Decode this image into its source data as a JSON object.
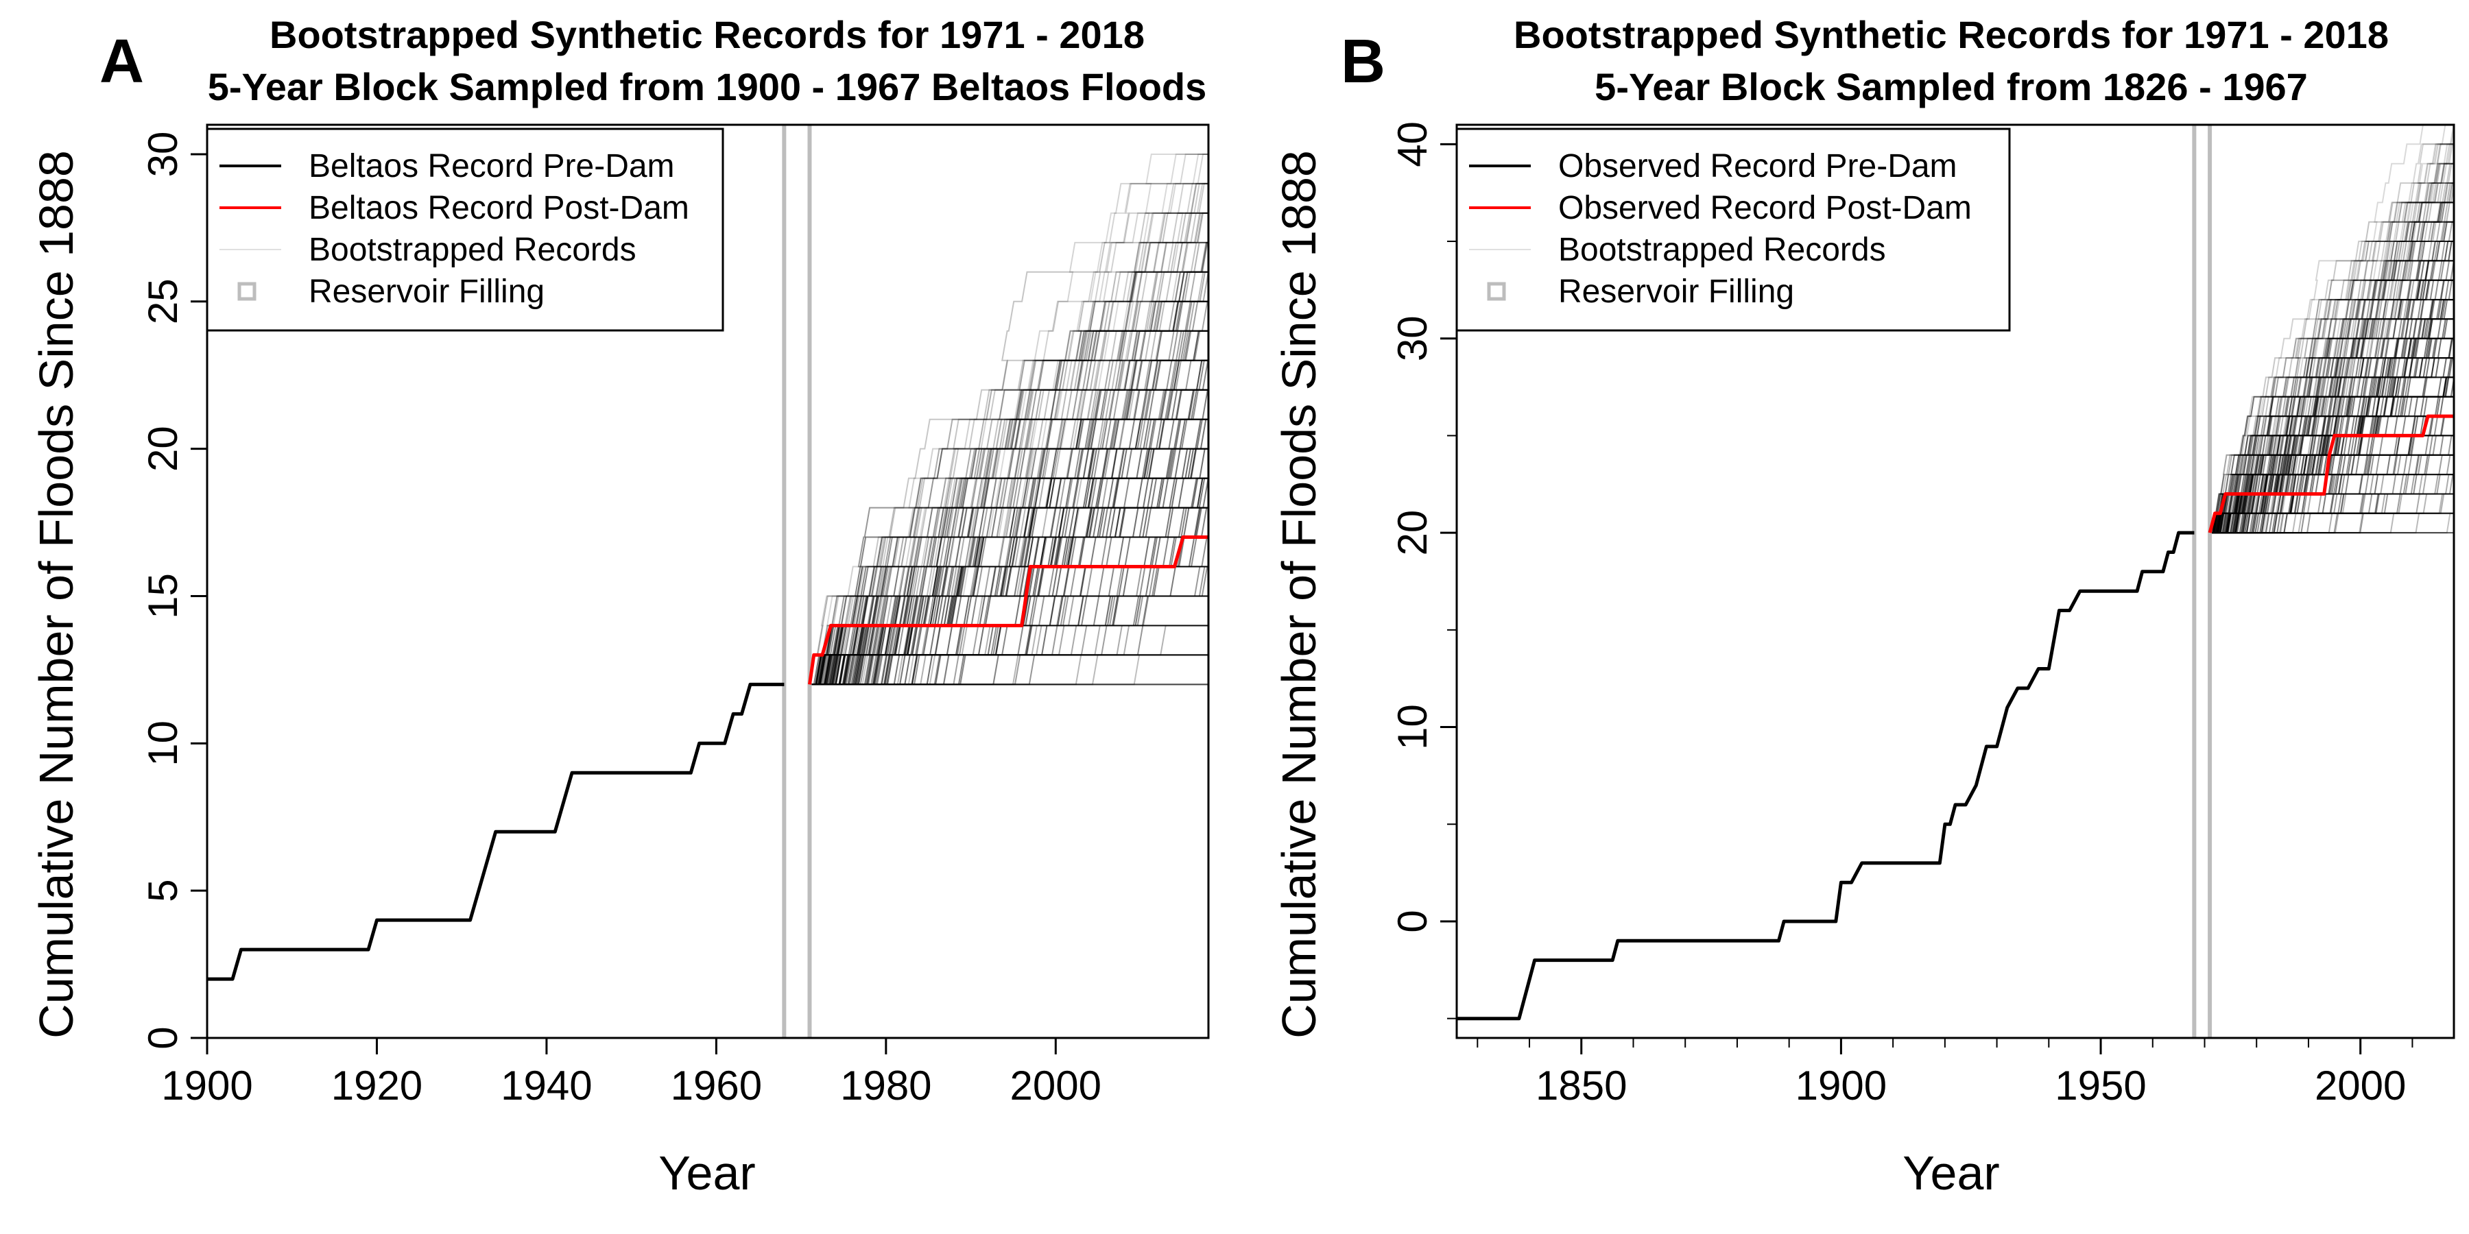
{
  "chart_data": [
    {
      "type": "line",
      "panel_letter": "A",
      "title_line1": "Bootstrapped Synthetic Records for 1971 - 2018",
      "title_line2": "5-Year Block Sampled from 1900 - 1967 Beltaos Floods",
      "xlabel": "Year",
      "ylabel": "Cumulative Number of Floods Since 1888",
      "xlim": [
        1900,
        2018
      ],
      "ylim": [
        0,
        31
      ],
      "xticks": [
        1900,
        1920,
        1940,
        1960,
        1980,
        2000
      ],
      "xtick_labels": [
        "1900",
        "1920",
        "1940",
        "1960",
        "1980",
        "2000"
      ],
      "yticks": [
        0,
        5,
        10,
        15,
        20,
        25,
        30
      ],
      "ytick_labels": [
        "0",
        "5",
        "10",
        "15",
        "20",
        "25",
        "30"
      ],
      "vlines": [
        1968,
        1971
      ],
      "legend_position": "top-left",
      "legend": [
        {
          "label": "Beltaos Record Pre-Dam",
          "style": "black-line"
        },
        {
          "label": "Beltaos Record Post-Dam",
          "style": "red-line"
        },
        {
          "label": "Bootstrapped Records",
          "style": "faint-line"
        },
        {
          "label": "Reservoir Filling",
          "style": "gray-square"
        }
      ],
      "series": [
        {
          "name": "Beltaos Record Pre-Dam",
          "color": "#000000",
          "x": [
            1900,
            1903,
            1904,
            1919,
            1920,
            1931,
            1934,
            1941,
            1943,
            1957,
            1958,
            1961,
            1962,
            1963,
            1964,
            1968
          ],
          "y": [
            2,
            2,
            3,
            3,
            4,
            4,
            7,
            7,
            9,
            9,
            10,
            10,
            11,
            11,
            12,
            12
          ]
        },
        {
          "name": "Beltaos Record Post-Dam",
          "color": "#ff0000",
          "x": [
            1971,
            1971.5,
            1972.5,
            1973.5,
            1974,
            1996,
            1997,
            2014,
            2015,
            2018
          ],
          "y": [
            12,
            13,
            13,
            14,
            14,
            14,
            16,
            16,
            17,
            17
          ]
        }
      ],
      "bootstrap": {
        "start_x": 1971,
        "end_x": 2018,
        "start_y": 12,
        "max_final": 30,
        "min_final": 12
      }
    },
    {
      "type": "line",
      "panel_letter": "B",
      "title_line1": "Bootstrapped Synthetic Records for 1971 - 2018",
      "title_line2": "5-Year Block Sampled from 1826 - 1967",
      "xlabel": "Year",
      "ylabel": "Cumulative Number of Floods Since 1888",
      "xlim": [
        1826,
        2018
      ],
      "ylim": [
        -6,
        41
      ],
      "xticks": [
        1850,
        1900,
        1950,
        2000
      ],
      "xtick_labels": [
        "1850",
        "1900",
        "1950",
        "2000"
      ],
      "xminor_step": 10,
      "yticks": [
        0,
        10,
        20,
        30,
        40
      ],
      "ytick_labels": [
        "0",
        "10",
        "20",
        "30",
        "40"
      ],
      "yminor_step": 5,
      "vlines": [
        1968,
        1971
      ],
      "legend_position": "top-left",
      "legend": [
        {
          "label": "Observed Record Pre-Dam",
          "style": "black-line"
        },
        {
          "label": "Observed Record Post-Dam",
          "style": "red-line"
        },
        {
          "label": "Bootstrapped Records",
          "style": "faint-line"
        },
        {
          "label": "Reservoir Filling",
          "style": "gray-square"
        }
      ],
      "series": [
        {
          "name": "Observed Record Pre-Dam",
          "color": "#000000",
          "x": [
            1826,
            1838,
            1841,
            1856,
            1857,
            1888,
            1889,
            1899,
            1900,
            1902,
            1904,
            1919,
            1920,
            1921,
            1922,
            1924,
            1926,
            1928,
            1930,
            1932,
            1934,
            1936,
            1938,
            1940,
            1942,
            1944,
            1946,
            1955,
            1956,
            1957,
            1958,
            1962,
            1963,
            1964,
            1965,
            1968
          ],
          "y": [
            -5,
            -5,
            -2,
            -2,
            -1,
            -1,
            0,
            0,
            2,
            2,
            3,
            3,
            5,
            5,
            6,
            6,
            7,
            9,
            9,
            11,
            12,
            12,
            13,
            13,
            16,
            16,
            17,
            17,
            17,
            17,
            18,
            18,
            19,
            19,
            20,
            20
          ]
        },
        {
          "name": "Observed Record Post-Dam",
          "color": "#ff0000",
          "x": [
            1971,
            1972,
            1973,
            1974,
            1975,
            1993,
            1994,
            1995,
            1996,
            2012,
            2013,
            2014,
            2018
          ],
          "y": [
            20,
            21,
            21,
            22,
            22,
            22,
            24,
            25,
            25,
            25,
            26,
            26,
            26
          ]
        }
      ],
      "bootstrap": {
        "start_x": 1971,
        "end_x": 2018,
        "start_y": 20,
        "max_final": 41,
        "min_final": 20
      }
    }
  ]
}
